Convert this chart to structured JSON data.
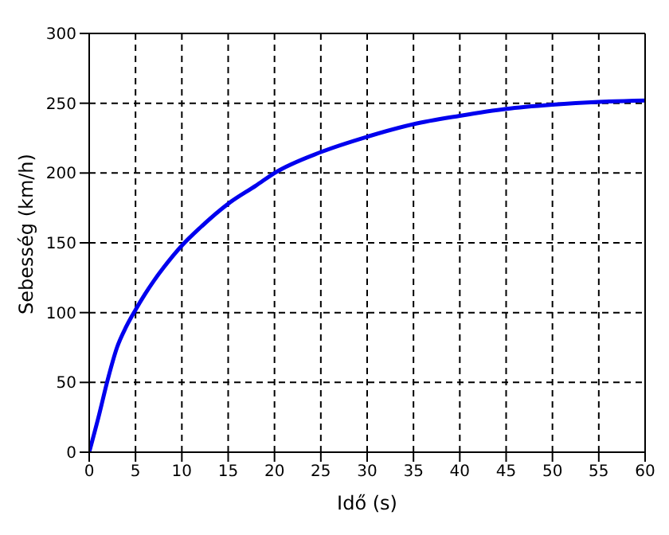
{
  "chart_data": {
    "type": "line",
    "xlabel": "Idő (s)",
    "ylabel": "Sebesség (km/h)",
    "x": [
      0,
      1,
      2,
      3,
      4,
      5,
      6,
      7,
      8,
      10,
      12,
      15,
      18,
      20,
      25,
      30,
      35,
      40,
      45,
      50,
      55,
      60
    ],
    "series": [
      {
        "color": "#0000ee",
        "values": [
          0,
          25,
          52,
          75,
          90,
          102,
          113,
          123,
          132,
          148,
          161,
          178,
          191,
          200,
          215,
          226,
          235,
          241,
          246,
          249,
          251,
          252
        ]
      }
    ],
    "xlim": [
      0,
      60
    ],
    "xticks": [
      0,
      5,
      10,
      15,
      20,
      25,
      30,
      35,
      40,
      45,
      50,
      55,
      60
    ],
    "ylim": [
      0,
      300
    ],
    "yticks": [
      0,
      50,
      100,
      150,
      200,
      250,
      300
    ],
    "grid": true,
    "line_style": "solid",
    "marker": "none"
  }
}
